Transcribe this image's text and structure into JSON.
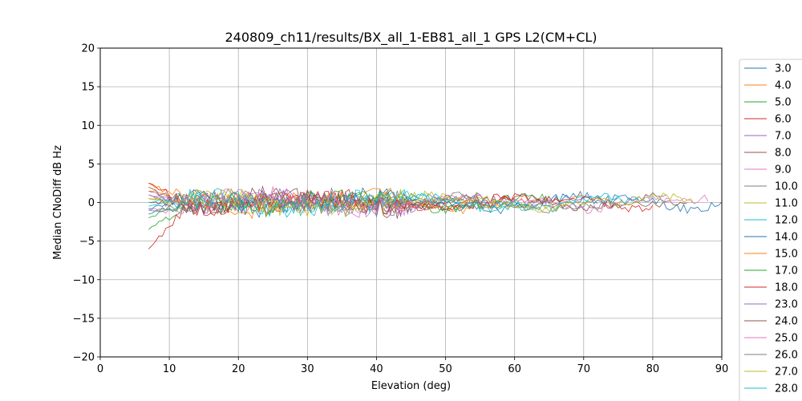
{
  "chart_data": {
    "type": "line",
    "title": "240809_ch11/results/BX_all_1-EB81_all_1 GPS L2(CM+CL)",
    "xlabel": "Elevation (deg)",
    "ylabel": "Median CNoDiff dB Hz",
    "xlim": [
      0,
      90
    ],
    "ylim": [
      -20,
      20
    ],
    "xticks": [
      "0",
      "10",
      "20",
      "30",
      "40",
      "50",
      "60",
      "70",
      "80",
      "90"
    ],
    "yticks": [
      "20",
      "15",
      "10",
      "5",
      "0",
      "−5",
      "−10",
      "−15",
      "−20"
    ],
    "grid": true,
    "legend_position": "right, outside plot",
    "series": [
      {
        "name": "3.0",
        "color": "#1f77b4",
        "x_range": [
          7,
          75
        ],
        "start_level": -1.5
      },
      {
        "name": "4.0",
        "color": "#ff7f0e",
        "x_range": [
          7,
          70
        ],
        "start_level": 1.5
      },
      {
        "name": "5.0",
        "color": "#2ca02c",
        "x_range": [
          7,
          65
        ],
        "start_level": -3.5
      },
      {
        "name": "6.0",
        "color": "#d62728",
        "x_range": [
          7,
          60
        ],
        "start_level": -6.0
      },
      {
        "name": "7.0",
        "color": "#9467bd",
        "x_range": [
          7,
          55
        ],
        "start_level": 1.0
      },
      {
        "name": "8.0",
        "color": "#8c564b",
        "x_range": [
          7,
          50
        ],
        "start_level": 2.0
      },
      {
        "name": "9.0",
        "color": "#e377c2",
        "x_range": [
          7,
          45
        ],
        "start_level": -1.0
      },
      {
        "name": "10.0",
        "color": "#7f7f7f",
        "x_range": [
          7,
          72
        ],
        "start_level": 1.0
      },
      {
        "name": "11.0",
        "color": "#bcbd22",
        "x_range": [
          7,
          68
        ],
        "start_level": 0.5
      },
      {
        "name": "12.0",
        "color": "#17becf",
        "x_range": [
          7,
          62
        ],
        "start_level": -0.5
      },
      {
        "name": "14.0",
        "color": "#1f77b4",
        "x_range": [
          7,
          90
        ],
        "start_level": -0.8
      },
      {
        "name": "15.0",
        "color": "#ff7f0e",
        "x_range": [
          7,
          58
        ],
        "start_level": 2.5
      },
      {
        "name": "17.0",
        "color": "#2ca02c",
        "x_range": [
          7,
          52
        ],
        "start_level": -2.0
      },
      {
        "name": "18.0",
        "color": "#d62728",
        "x_range": [
          7,
          80
        ],
        "start_level": 2.5
      },
      {
        "name": "23.0",
        "color": "#9467bd",
        "x_range": [
          7,
          48
        ],
        "start_level": 1.5
      },
      {
        "name": "24.0",
        "color": "#8c564b",
        "x_range": [
          7,
          85
        ],
        "start_level": 0.0
      },
      {
        "name": "25.0",
        "color": "#e377c2",
        "x_range": [
          7,
          88
        ],
        "start_level": 1.0
      },
      {
        "name": "26.0",
        "color": "#7f7f7f",
        "x_range": [
          7,
          82
        ],
        "start_level": -1.0
      },
      {
        "name": "27.0",
        "color": "#bcbd22",
        "x_range": [
          7,
          86
        ],
        "start_level": 0.5
      },
      {
        "name": "28.0",
        "color": "#17becf",
        "x_range": [
          7,
          78
        ],
        "start_level": 0.0
      }
    ]
  }
}
